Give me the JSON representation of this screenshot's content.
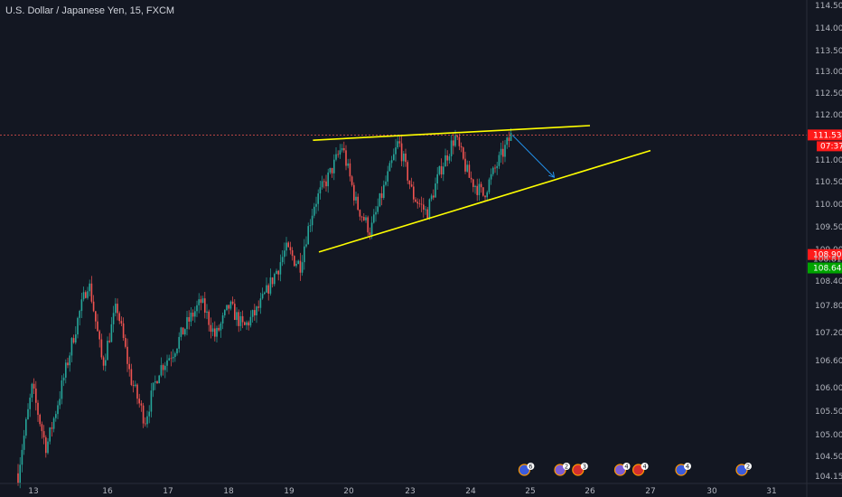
{
  "header": {
    "symbol_title": "U.S. Dollar / Japanese Yen, 15, FXCM"
  },
  "colors": {
    "background": "#131722",
    "axis_text": "#b2b5be",
    "up_candle": "#26a69a",
    "down_candle": "#ef5350",
    "trendline": "#ffff00",
    "projection_arrow": "#2196f3",
    "current_price_line": "#ef5350",
    "tag_red": "#ff1a1a",
    "tag_green": "#00a400"
  },
  "chart_data": {
    "type": "candlestick",
    "title": "U.S. Dollar / Japanese Yen, 15, FXCM",
    "x_axis": {
      "tick_labels": [
        "13",
        "16",
        "17",
        "18",
        "19",
        "20",
        "23",
        "24",
        "25",
        "26",
        "27",
        "30",
        "31"
      ],
      "label": ""
    },
    "y_axis": {
      "position": "right",
      "ylim": [
        104.05,
        114.65
      ],
      "tick_labels": [
        "114.500",
        "114.000",
        "113.500",
        "113.000",
        "112.500",
        "112.000",
        "111.500",
        "111.000",
        "110.500",
        "110.000",
        "109.500",
        "109.000",
        "108.400",
        "107.800",
        "107.200",
        "106.600",
        "106.000",
        "105.500",
        "105.000",
        "104.500",
        "104.150"
      ],
      "label": ""
    },
    "price_path": [
      [
        "13",
        104.2
      ],
      [
        "13",
        106.0
      ],
      [
        "13",
        104.7
      ],
      [
        "13",
        105.9
      ],
      [
        "13",
        107.2
      ],
      [
        "16",
        108.4
      ],
      [
        "16",
        106.5
      ],
      [
        "16",
        107.8
      ],
      [
        "16",
        106.2
      ],
      [
        "16",
        105.3
      ],
      [
        "17",
        106.4
      ],
      [
        "17",
        106.8
      ],
      [
        "17",
        107.4
      ],
      [
        "17",
        107.9
      ],
      [
        "17",
        107.1
      ],
      [
        "18",
        107.8
      ],
      [
        "18",
        107.3
      ],
      [
        "18",
        107.7
      ],
      [
        "18",
        108.4
      ],
      [
        "18",
        109.0
      ],
      [
        "19",
        108.7
      ],
      [
        "19",
        110.0
      ],
      [
        "19",
        110.6
      ],
      [
        "19",
        111.3
      ],
      [
        "20",
        110.0
      ],
      [
        "20",
        109.4
      ],
      [
        "20",
        110.4
      ],
      [
        "20",
        111.4
      ],
      [
        "23",
        110.2
      ],
      [
        "23",
        109.8
      ],
      [
        "23",
        110.8
      ],
      [
        "23",
        111.5
      ],
      [
        "24",
        110.6
      ],
      [
        "24",
        110.2
      ],
      [
        "24",
        110.9
      ],
      [
        "24",
        111.53
      ]
    ],
    "current_price": {
      "label": "111.534",
      "value": 111.534,
      "countdown": "07:37"
    },
    "price_tags": [
      {
        "label": "108.903",
        "value": 108.903,
        "color": "red"
      },
      {
        "label": "108.819",
        "value": 108.819,
        "color": "none"
      },
      {
        "label": "108.648",
        "value": 108.648,
        "color": "green"
      }
    ],
    "annotations": {
      "upper_trendline": {
        "from": [
          "19.4",
          111.42
        ],
        "to": [
          "26",
          111.75
        ]
      },
      "lower_trendline": {
        "from": [
          "19.5",
          108.95
        ],
        "to": [
          "27",
          111.2
        ]
      },
      "projection_arrow": {
        "from": [
          "24.7",
          111.53
        ],
        "to": [
          "25.4",
          110.6
        ]
      }
    },
    "events": [
      {
        "icon": "us-flag-icon",
        "count": "6",
        "near": "24.9"
      },
      {
        "icon": "multi-flag-icon",
        "count": "2",
        "near": "25.5"
      },
      {
        "icon": "ca-flag-icon",
        "count": "3",
        "near": "25.8"
      },
      {
        "icon": "multi-flag-icon",
        "count": "4",
        "near": "26.5"
      },
      {
        "icon": "ca-flag-icon",
        "count": "4",
        "near": "26.8"
      },
      {
        "icon": "us-flag-icon",
        "count": "4",
        "near": "27.5"
      },
      {
        "icon": "us-flag-icon",
        "count": "2",
        "near": "30.5"
      }
    ],
    "grid": false,
    "legend": "none"
  }
}
